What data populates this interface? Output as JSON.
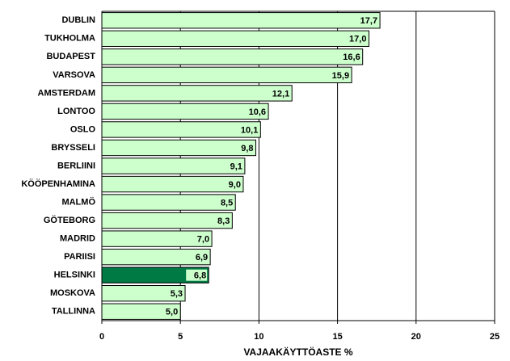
{
  "chart_data": {
    "type": "bar",
    "orientation": "horizontal",
    "x_label": "VAJAAKÄYTTÖASTE %",
    "categories": [
      "DUBLIN",
      "TUKHOLMA",
      "BUDAPEST",
      "VARSOVA",
      "AMSTERDAM",
      "LONTOO",
      "OSLO",
      "BRYSSELI",
      "BERLIINI",
      "KÖÖPENHAMINA",
      "MALMÖ",
      "GÖTEBORG",
      "MADRID",
      "PARIISI",
      "HELSINKI",
      "MOSKOVA",
      "TALLINNA"
    ],
    "values": [
      17.7,
      17.0,
      16.6,
      15.9,
      12.1,
      10.6,
      10.1,
      9.8,
      9.1,
      9.0,
      8.5,
      8.3,
      7.0,
      6.9,
      6.8,
      5.3,
      5.0
    ],
    "value_labels": [
      "17,7",
      "17,0",
      "16,6",
      "15,9",
      "12,1",
      "10,6",
      "10,1",
      "9,8",
      "9,1",
      "9,0",
      "8,5",
      "8,3",
      "7,0",
      "6,9",
      "6,8",
      "5,3",
      "5,0"
    ],
    "colors": [
      "#ccffcc",
      "#ccffcc",
      "#ccffcc",
      "#ccffcc",
      "#ccffcc",
      "#ccffcc",
      "#ccffcc",
      "#ccffcc",
      "#ccffcc",
      "#ccffcc",
      "#ccffcc",
      "#ccffcc",
      "#ccffcc",
      "#ccffcc",
      "#007a45",
      "#ccffcc",
      "#ccffcc"
    ],
    "xlim": [
      0,
      25
    ],
    "xticks": [
      0,
      5,
      10,
      15,
      20,
      25
    ],
    "grid": true
  }
}
